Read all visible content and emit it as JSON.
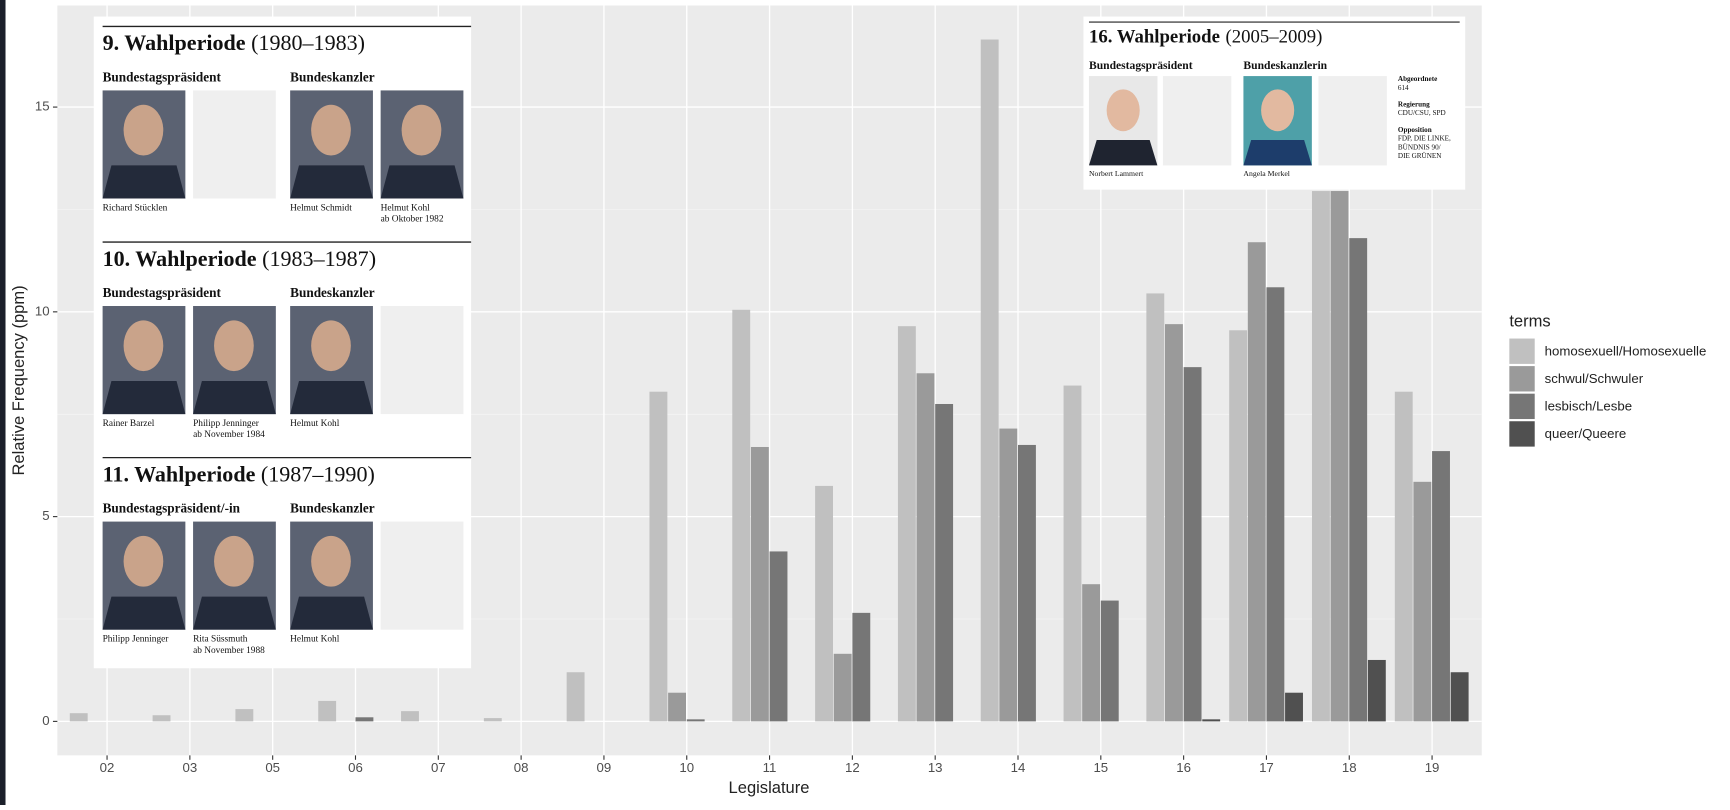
{
  "chart_data": {
    "type": "bar",
    "x_label": "Legislature",
    "y_label": "Relative Frequency (ppm)",
    "legend_title": "terms",
    "categories": [
      "02",
      "03",
      "05",
      "06",
      "07",
      "08",
      "09",
      "10",
      "11",
      "12",
      "13",
      "14",
      "15",
      "16",
      "17",
      "18",
      "19"
    ],
    "series": [
      {
        "name": "homosexuell/Homosexuelle",
        "color": "#c0c0c0",
        "values": [
          0.2,
          0.15,
          0.3,
          0.5,
          0.25,
          0.08,
          1.2,
          8.05,
          10.05,
          5.75,
          9.65,
          16.65,
          8.2,
          10.45,
          9.55,
          12.95,
          8.05
        ]
      },
      {
        "name": "schwul/Schwuler",
        "color": "#9a9a9a",
        "values": [
          null,
          null,
          null,
          null,
          null,
          null,
          null,
          0.7,
          6.7,
          1.65,
          8.5,
          7.15,
          3.35,
          9.7,
          11.7,
          12.95,
          5.85
        ]
      },
      {
        "name": "lesbisch/Lesbe",
        "color": "#767676",
        "values": [
          null,
          null,
          null,
          0.1,
          null,
          null,
          null,
          0.05,
          4.15,
          2.65,
          7.75,
          6.75,
          2.95,
          8.65,
          10.6,
          11.8,
          6.6
        ]
      },
      {
        "name": "queer/Queere",
        "color": "#505050",
        "values": [
          null,
          null,
          null,
          null,
          null,
          null,
          null,
          null,
          null,
          null,
          null,
          null,
          null,
          0.05,
          0.7,
          1.5,
          1.2
        ]
      }
    ],
    "ylim": [
      -0.83,
      17.48
    ],
    "yticks": [
      0,
      5,
      10,
      15
    ],
    "grid": true,
    "legend_position": "right"
  },
  "panels": [
    {
      "periods": [
        {
          "title": "9. Wahlperiode",
          "years": "(1980–1983)",
          "roles": [
            "Bundestagspräsident",
            "Bundeskanzler"
          ],
          "people": [
            {
              "name": "Richard Stücklen"
            },
            {
              "name": "Helmut Schmidt"
            },
            {
              "name": "Helmut Kohl",
              "note": "ab Oktober 1982"
            }
          ]
        },
        {
          "title": "10. Wahlperiode",
          "years": "(1983–1987)",
          "roles": [
            "Bundestagspräsident",
            "Bundeskanzler"
          ],
          "people": [
            {
              "name": "Rainer Barzel"
            },
            {
              "name": "Philipp Jenninger",
              "note": "ab November 1984"
            },
            {
              "name": "Helmut Kohl"
            }
          ]
        },
        {
          "title": "11. Wahlperiode",
          "years": "(1987–1990)",
          "roles": [
            "Bundestagspräsident/-in",
            "Bundeskanzler"
          ],
          "people": [
            {
              "name": "Philipp Jenninger"
            },
            {
              "name": "Rita Süssmuth",
              "note": "ab November 1988"
            },
            {
              "name": "Helmut Kohl"
            }
          ]
        }
      ]
    },
    {
      "periods": [
        {
          "title": "16. Wahlperiode",
          "years": "(2005–2009)",
          "roles": [
            "Bundestagspräsident",
            "Bundeskanzlerin"
          ],
          "people": [
            {
              "name": "Norbert Lammert"
            },
            {
              "name": "Angela Merkel"
            }
          ],
          "info": [
            {
              "label": "Abgeordnete",
              "lines": [
                "614"
              ]
            },
            {
              "label": "Regierung",
              "lines": [
                "CDU/CSU, SPD"
              ]
            },
            {
              "label": "Opposition",
              "lines": [
                "FDP, DIE LINKE,",
                "BÜNDNIS 90/",
                "DIE GRÜNEN"
              ]
            }
          ]
        }
      ]
    }
  ]
}
